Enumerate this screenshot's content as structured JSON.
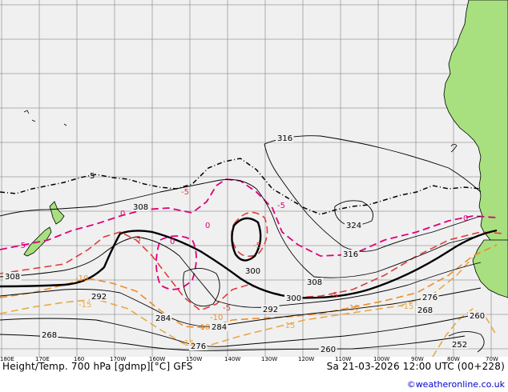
{
  "title": "Height/Temp. 700 hPa [gdmp][°C] GFS",
  "valid_time": "Sa 21-03-2026 12:00 UTC (00+228)",
  "credit": "©weatheronline.co.uk",
  "longitude_labels": [
    "180E",
    "170E",
    "160",
    "170W",
    "160W",
    "150W",
    "140W",
    "130W",
    "120W",
    "110W",
    "100W",
    "90W",
    "80W",
    "70W"
  ],
  "height_contour_labels": [
    "316",
    "308",
    "300",
    "292",
    "284",
    "276",
    "268",
    "260",
    "252",
    "308",
    "324",
    "316",
    "308",
    "300",
    "292",
    "284",
    "276",
    "268",
    "260"
  ],
  "temperature_contour_labels": [
    "-5",
    "5",
    "-5",
    "-5",
    "0",
    "0",
    "0",
    "-5",
    "-5",
    "-10",
    "-10",
    "-15",
    "-10",
    "-15",
    "-10",
    "-15",
    "-15",
    "0",
    "-5",
    "-5"
  ],
  "colors": {
    "background": "#f0f0f0",
    "land": "#a8e080",
    "grid": "#999999",
    "height": "#000000",
    "temp_positive": "#e0007a",
    "temp_zero": "#e0007a",
    "temp_minus5": "#e03c3c",
    "temp_minus10": "#f08c28",
    "temp_minus15": "#e8a848",
    "coast": "#000000",
    "credit": "#0000cc"
  }
}
